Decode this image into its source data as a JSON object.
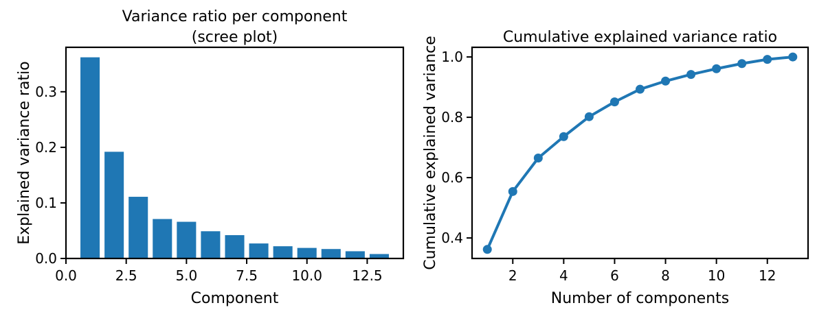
{
  "chart_data": [
    {
      "type": "bar",
      "title": "Variance ratio per component\n(scree plot)",
      "xlabel": "Component",
      "ylabel": "Explained variance ratio",
      "x": [
        1,
        2,
        3,
        4,
        5,
        6,
        7,
        8,
        9,
        10,
        11,
        12,
        13
      ],
      "values": [
        0.362,
        0.192,
        0.111,
        0.071,
        0.066,
        0.049,
        0.042,
        0.027,
        0.022,
        0.019,
        0.017,
        0.013,
        0.008
      ],
      "xlim": [
        0.0,
        14.0
      ],
      "ylim": [
        0.0,
        0.38
      ],
      "xticks": [
        0.0,
        2.5,
        5.0,
        7.5,
        10.0,
        12.5
      ],
      "xtick_labels": [
        "0.0",
        "2.5",
        "5.0",
        "7.5",
        "10.0",
        "12.5"
      ],
      "yticks": [
        0.0,
        0.1,
        0.2,
        0.3
      ],
      "ytick_labels": [
        "0.0",
        "0.1",
        "0.2",
        "0.3"
      ],
      "color": "#1f77b4",
      "grid": false
    },
    {
      "type": "line",
      "title": "Cumulative explained variance ratio",
      "xlabel": "Number of components",
      "ylabel": "Cumulative explained variance",
      "x": [
        1,
        2,
        3,
        4,
        5,
        6,
        7,
        8,
        9,
        10,
        11,
        12,
        13
      ],
      "y": [
        0.362,
        0.554,
        0.665,
        0.736,
        0.802,
        0.851,
        0.893,
        0.92,
        0.942,
        0.961,
        0.978,
        0.992,
        1.0
      ],
      "xlim": [
        0.4,
        13.6
      ],
      "ylim": [
        0.332,
        1.032
      ],
      "xticks": [
        2,
        4,
        6,
        8,
        10,
        12
      ],
      "xtick_labels": [
        "2",
        "4",
        "6",
        "8",
        "10",
        "12"
      ],
      "yticks": [
        0.4,
        0.6,
        0.8,
        1.0
      ],
      "ytick_labels": [
        "0.4",
        "0.6",
        "0.8",
        "1.0"
      ],
      "color": "#1f77b4",
      "marker": "circle",
      "grid": false
    }
  ]
}
